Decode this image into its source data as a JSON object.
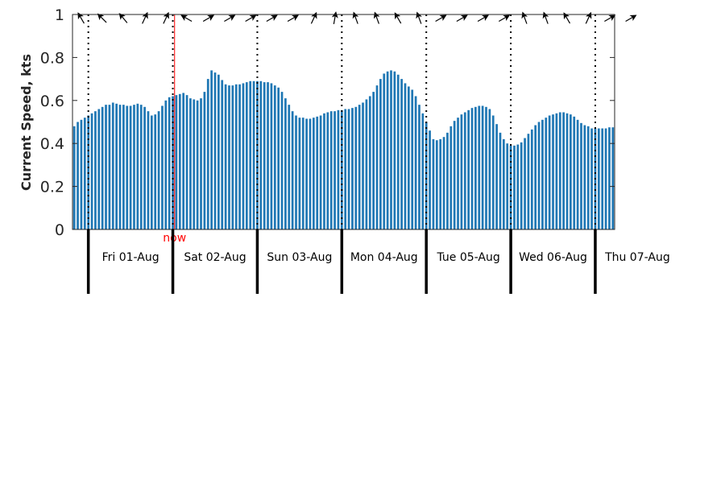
{
  "chart_data": {
    "type": "bar",
    "ylabel": "Current Speed, kts",
    "ylim": [
      0,
      1
    ],
    "yticks": [
      0,
      0.2,
      0.4,
      0.6,
      0.8,
      1
    ],
    "ytick_labels": [
      "0",
      "0.2",
      "0.4",
      "0.6",
      "0.8",
      "1"
    ],
    "grid": false,
    "x_unit": "hour",
    "x_range": [
      "2025-07-31 20:00",
      "2025-08-07 20:00"
    ],
    "bar_interval_hours": 1,
    "x_start_label": "2025-07-31 20:00",
    "values": [
      0.48,
      0.5,
      0.51,
      0.52,
      0.53,
      0.54,
      0.55,
      0.56,
      0.57,
      0.58,
      0.58,
      0.59,
      0.585,
      0.58,
      0.58,
      0.575,
      0.575,
      0.58,
      0.585,
      0.58,
      0.57,
      0.55,
      0.53,
      0.535,
      0.55,
      0.575,
      0.6,
      0.615,
      0.62,
      0.625,
      0.63,
      0.635,
      0.625,
      0.61,
      0.605,
      0.6,
      0.61,
      0.64,
      0.7,
      0.74,
      0.73,
      0.72,
      0.695,
      0.675,
      0.67,
      0.67,
      0.675,
      0.675,
      0.68,
      0.685,
      0.69,
      0.69,
      0.69,
      0.69,
      0.685,
      0.685,
      0.68,
      0.67,
      0.66,
      0.64,
      0.61,
      0.58,
      0.55,
      0.53,
      0.52,
      0.52,
      0.515,
      0.515,
      0.52,
      0.525,
      0.53,
      0.54,
      0.545,
      0.55,
      0.55,
      0.555,
      0.555,
      0.56,
      0.56,
      0.565,
      0.57,
      0.58,
      0.59,
      0.605,
      0.62,
      0.64,
      0.67,
      0.7,
      0.725,
      0.735,
      0.74,
      0.735,
      0.72,
      0.7,
      0.68,
      0.665,
      0.65,
      0.62,
      0.58,
      0.54,
      0.5,
      0.46,
      0.42,
      0.415,
      0.42,
      0.43,
      0.45,
      0.48,
      0.505,
      0.52,
      0.535,
      0.545,
      0.555,
      0.565,
      0.57,
      0.575,
      0.575,
      0.57,
      0.56,
      0.53,
      0.49,
      0.45,
      0.42,
      0.4,
      0.39,
      0.39,
      0.395,
      0.405,
      0.425,
      0.445,
      0.465,
      0.485,
      0.5,
      0.51,
      0.52,
      0.53,
      0.535,
      0.54,
      0.545,
      0.545,
      0.54,
      0.535,
      0.525,
      0.51,
      0.495,
      0.485,
      0.48,
      0.47,
      0.47,
      0.47,
      0.47,
      0.47,
      0.475,
      0.475
    ],
    "day_ticks": [
      {
        "hour": 4,
        "label": "Fri 01-Aug"
      },
      {
        "hour": 28,
        "label": "Sat 02-Aug"
      },
      {
        "hour": 52,
        "label": "Sun 03-Aug"
      },
      {
        "hour": 76,
        "label": "Mon 04-Aug"
      },
      {
        "hour": 100,
        "label": "Tue 05-Aug"
      },
      {
        "hour": 124,
        "label": "Wed 06-Aug"
      },
      {
        "hour": 148,
        "label": "Thu 07-Aug"
      }
    ],
    "now_marker": {
      "hour": 29,
      "label": "now"
    },
    "arrows": [
      {
        "hour": 2,
        "direction_deg": 330
      },
      {
        "hour": 8,
        "direction_deg": 315
      },
      {
        "hour": 14,
        "direction_deg": 320
      },
      {
        "hour": 20,
        "direction_deg": 25
      },
      {
        "hour": 26,
        "direction_deg": 25
      },
      {
        "hour": 32,
        "direction_deg": 300
      },
      {
        "hour": 38,
        "direction_deg": 60
      },
      {
        "hour": 44,
        "direction_deg": 60
      },
      {
        "hour": 50,
        "direction_deg": 60
      },
      {
        "hour": 56,
        "direction_deg": 60
      },
      {
        "hour": 62,
        "direction_deg": 60
      },
      {
        "hour": 68,
        "direction_deg": 25
      },
      {
        "hour": 74,
        "direction_deg": 10
      },
      {
        "hour": 80,
        "direction_deg": 340
      },
      {
        "hour": 86,
        "direction_deg": 340
      },
      {
        "hour": 92,
        "direction_deg": 330
      },
      {
        "hour": 98,
        "direction_deg": 340
      },
      {
        "hour": 104,
        "direction_deg": 60
      },
      {
        "hour": 110,
        "direction_deg": 60
      },
      {
        "hour": 116,
        "direction_deg": 60
      },
      {
        "hour": 122,
        "direction_deg": 60
      },
      {
        "hour": 128,
        "direction_deg": 340
      },
      {
        "hour": 134,
        "direction_deg": 340
      },
      {
        "hour": 140,
        "direction_deg": 330
      },
      {
        "hour": 146,
        "direction_deg": 25
      },
      {
        "hour": 152,
        "direction_deg": 60
      },
      {
        "hour": 158,
        "direction_deg": 60
      }
    ],
    "colors": {
      "bar": "#1f77b4",
      "now": "#ff0000",
      "axis": "#262626",
      "day_line": "#000000"
    }
  }
}
